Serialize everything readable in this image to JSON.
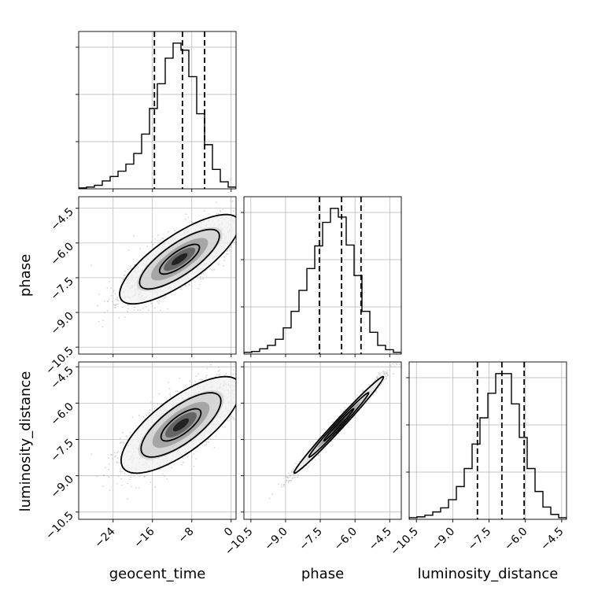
{
  "chart_data": {
    "type": "corner",
    "parameters": [
      "geocent_time",
      "phase",
      "luminosity_distance"
    ],
    "axes": {
      "geocent_time": {
        "range": [
          -31,
          1
        ],
        "ticks": [
          -24,
          -16,
          -8,
          0
        ],
        "tick_labels": [
          "−24",
          "−16",
          "−8",
          "0"
        ]
      },
      "phase": {
        "range": [
          -10.8,
          -4.0
        ],
        "ticks": [
          -10.5,
          -9.0,
          -7.5,
          -6.0,
          -4.5
        ],
        "tick_labels": [
          "−10.5",
          "−9.0",
          "−7.5",
          "−6.0",
          "−4.5"
        ]
      },
      "luminosity_distance": {
        "range": [
          -10.8,
          -4.3
        ],
        "ticks": [
          -10.5,
          -9.0,
          -7.5,
          -6.0,
          -4.5
        ],
        "tick_labels": [
          "−10.5",
          "−9.0",
          "−7.5",
          "−6.0",
          "−4.5"
        ]
      }
    },
    "histograms": {
      "geocent_time": {
        "bin_edges": [
          -31.0,
          -29.4,
          -27.8,
          -26.2,
          -24.6,
          -23.0,
          -21.4,
          -19.8,
          -18.2,
          -16.6,
          -15.0,
          -13.4,
          -11.8,
          -10.2,
          -8.6,
          -7.0,
          -5.4,
          -3.8,
          -2.2,
          -0.6,
          1.0
        ],
        "counts": [
          1,
          2,
          4,
          9,
          14,
          20,
          28,
          40,
          62,
          91,
          119,
          148,
          165,
          157,
          127,
          85,
          50,
          22,
          8,
          2
        ],
        "quantile_lines": [
          -15.6,
          -9.9,
          -5.4
        ]
      },
      "phase": {
        "bin_edges": [
          -10.8,
          -10.46,
          -10.12,
          -9.78,
          -9.44,
          -9.1,
          -8.76,
          -8.42,
          -8.08,
          -7.74,
          -7.4,
          -7.06,
          -6.72,
          -6.38,
          -6.04,
          -5.7,
          -5.36,
          -5.02,
          -4.68,
          -4.34,
          -4.0
        ],
        "counts": [
          2,
          3,
          6,
          10,
          17,
          30,
          49,
          73,
          98,
          124,
          151,
          167,
          157,
          125,
          90,
          49,
          25,
          10,
          5,
          2
        ],
        "quantile_lines": [
          -7.54,
          -6.58,
          -5.74
        ]
      },
      "luminosity_distance": {
        "bin_edges": [
          -10.8,
          -10.475,
          -10.15,
          -9.825,
          -9.5,
          -9.175,
          -8.85,
          -8.525,
          -8.2,
          -7.875,
          -7.55,
          -7.225,
          -6.9,
          -6.575,
          -6.25,
          -5.925,
          -5.6,
          -5.275,
          -4.95,
          -4.625,
          -4.3
        ],
        "counts": [
          2,
          3,
          5,
          9,
          14,
          24,
          40,
          62,
          92,
          124,
          154,
          178,
          178,
          141,
          100,
          62,
          34,
          15,
          6,
          2
        ],
        "quantile_lines": [
          -7.98,
          -6.97,
          -6.05
        ]
      }
    },
    "joint": {
      "geocent_time_vs_phase": {
        "x_center": -10.5,
        "y_center": -6.7,
        "x_sd": 5.8,
        "y_sd": 0.92,
        "correlation": 0.78
      },
      "geocent_time_vs_luminosity_distance": {
        "x_center": -10.2,
        "y_center": -6.9,
        "x_sd": 5.8,
        "y_sd": 0.95,
        "correlation": 0.74
      },
      "phase_vs_luminosity_distance": {
        "x_center": -6.7,
        "y_center": -6.9,
        "x_sd": 0.92,
        "y_sd": 0.95,
        "correlation": 0.99
      }
    },
    "grid": true,
    "legend": "none",
    "colors": {
      "contour": "#000000",
      "points": "#aaaaaa",
      "grid": "#b0b0b0",
      "quantile": "#000000"
    }
  }
}
